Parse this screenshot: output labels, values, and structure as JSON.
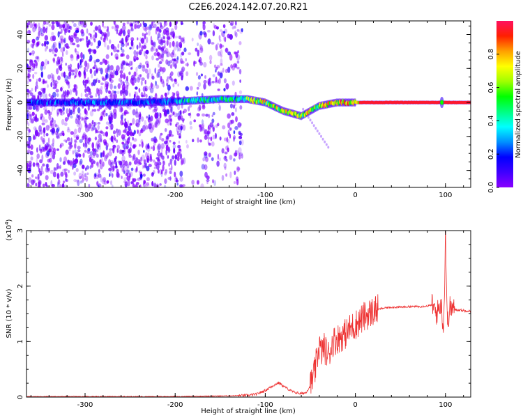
{
  "page": {
    "title": "C2E6.2024.142.07.20.R21"
  },
  "chart_data": [
    {
      "type": "heatmap",
      "title": "",
      "xlabel": "Height of straight line (km)",
      "ylabel": "Frequency (Hz)",
      "xlim": [
        -365,
        128
      ],
      "ylim": [
        -50,
        48
      ],
      "xticks": [
        -300,
        -200,
        -100,
        0,
        100
      ],
      "yticks": [
        -40,
        -20,
        0,
        20,
        40
      ],
      "colorbar": {
        "label": "Normalized spectral amplitude",
        "range": [
          0,
          1
        ],
        "ticks": [
          "0.0",
          "0.2",
          "0.4",
          "0.6",
          "0.8"
        ],
        "colormap": [
          "#8a00ff",
          "#3f00ff",
          "#0000ff",
          "#0090ff",
          "#00ffff",
          "#00ff80",
          "#00ff00",
          "#a0ff00",
          "#ffff00",
          "#ffa000",
          "#ff2000",
          "#ff1060"
        ]
      },
      "ridge": {
        "x": [
          -360,
          -300,
          -250,
          -200,
          -150,
          -120,
          -100,
          -80,
          -60,
          -50,
          -40,
          -20,
          0,
          50,
          90,
          100,
          128
        ],
        "freq_hz": [
          0,
          0,
          0,
          0.5,
          2,
          2,
          0,
          -5,
          -8,
          -5,
          -2,
          0,
          0,
          0,
          0,
          0,
          0
        ]
      }
    },
    {
      "type": "line",
      "title": "",
      "xlabel": "Height of straight line (km)",
      "ylabel": "SNR (10 * v/v)",
      "multiplier": "(x10",
      "multiplier_exp": "4",
      "multiplier_close": ")",
      "xlim": [
        -365,
        128
      ],
      "ylim": [
        0,
        3
      ],
      "xticks": [
        -300,
        -200,
        -100,
        0,
        100
      ],
      "yticks": [
        0,
        1,
        2,
        3
      ],
      "color": "#ee3333",
      "series": [
        {
          "x": [
            -365,
            -300,
            -200,
            -150,
            -120,
            -110,
            -100,
            -90,
            -85,
            -80,
            -70,
            -60,
            -55,
            -50,
            -45,
            -40,
            -38,
            -35,
            -30,
            -25,
            -20,
            -15,
            -10,
            -5,
            0,
            10,
            20,
            30,
            40,
            50,
            60,
            70,
            80,
            85,
            90,
            95,
            98,
            100,
            102,
            105,
            110,
            120,
            128
          ],
          "y": [
            0.01,
            0.01,
            0.01,
            0.02,
            0.03,
            0.05,
            0.12,
            0.22,
            0.26,
            0.2,
            0.1,
            0.06,
            0.08,
            0.2,
            0.45,
            0.95,
            0.8,
            0.9,
            0.75,
            1.0,
            1.05,
            1.1,
            1.15,
            1.25,
            1.3,
            1.45,
            1.55,
            1.6,
            1.62,
            1.62,
            1.63,
            1.63,
            1.64,
            1.66,
            1.5,
            1.7,
            1.2,
            3.0,
            1.3,
            1.62,
            1.58,
            1.56,
            1.55
          ]
        }
      ]
    }
  ]
}
